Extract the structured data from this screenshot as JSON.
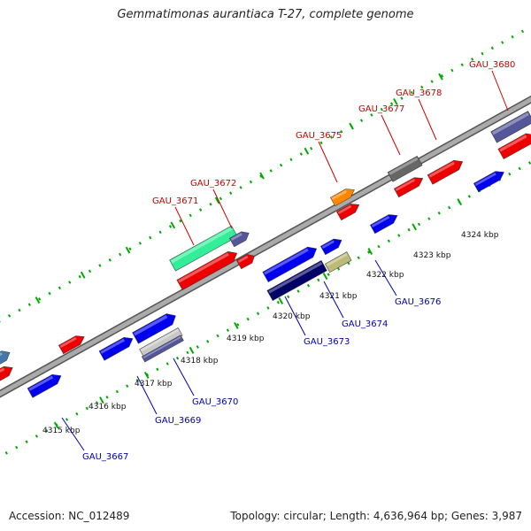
{
  "title": "Gemmatimonas aurantiaca T-27, complete genome",
  "footer": {
    "accession": "Accession: NC_012489",
    "summary": "Topology: circular; Length: 4,636,964 bp; Genes: 3,987"
  },
  "ticks": [
    "4315 kbp",
    "4316 kbp",
    "4317 kbp",
    "4318 kbp",
    "4319 kbp",
    "4320 kbp",
    "4321 kbp",
    "4322 kbp",
    "4323 kbp",
    "4324 kbp"
  ],
  "labels_forward": [
    "GAU_3671",
    "GAU_3672",
    "GAU_3675",
    "GAU_3677",
    "GAU_3678",
    "GAU_3680"
  ],
  "labels_reverse": [
    "GAU_3667",
    "GAU_3669",
    "GAU_3670",
    "GAU_3673",
    "GAU_3674",
    "GAU_3676"
  ],
  "colors": {
    "forward_label": "#cc0000",
    "reverse_label": "#0000aa",
    "cds_red": "#ee0000",
    "cds_blue": "#0000ee",
    "navy": "#000066",
    "slate": "#555599",
    "green": "#33ee99",
    "orange": "#ff8800",
    "gray": "#666666",
    "khaki": "#bbbb77",
    "steel": "#4477aa",
    "tick": "#00aa00",
    "backbone": "#888888"
  }
}
